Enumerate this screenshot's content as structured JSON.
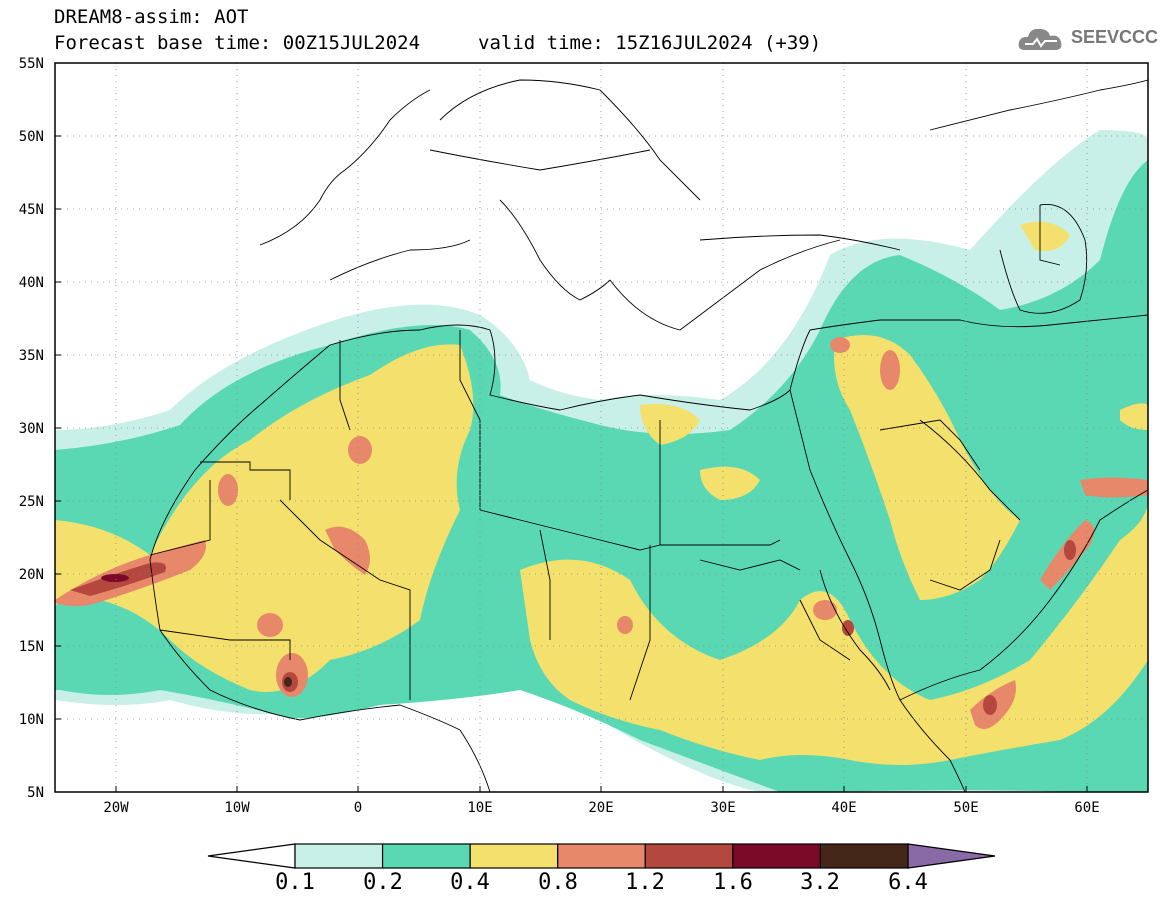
{
  "header": {
    "title": "DREAM8-assim: AOT",
    "base_time": "Forecast base time: 00Z15JUL2024",
    "valid_time": "valid time: 15Z16JUL2024 (+39)"
  },
  "logo": {
    "text": "SEEVCCC"
  },
  "map": {
    "lon_range": [
      -25,
      65
    ],
    "lat_range": [
      5,
      55
    ],
    "lon_ticks": [
      "20W",
      "10W",
      "0",
      "10E",
      "20E",
      "30E",
      "40E",
      "50E",
      "60E"
    ],
    "lat_ticks": [
      "55N",
      "50N",
      "45N",
      "40N",
      "35N",
      "30N",
      "25N",
      "20N",
      "15N",
      "10N",
      "5N"
    ],
    "grid": true
  },
  "colorbar": {
    "colors": [
      "#c8f0e8",
      "#5ad8b4",
      "#f4e06c",
      "#e8886a",
      "#b4483e",
      "#7a0a28",
      "#45271a"
    ],
    "over_color": "#8a6aa6",
    "under_color": "#ffffff",
    "labels": [
      "0.1",
      "0.2",
      "0.4",
      "0.8",
      "1.2",
      "1.6",
      "3.2",
      "6.4"
    ]
  }
}
